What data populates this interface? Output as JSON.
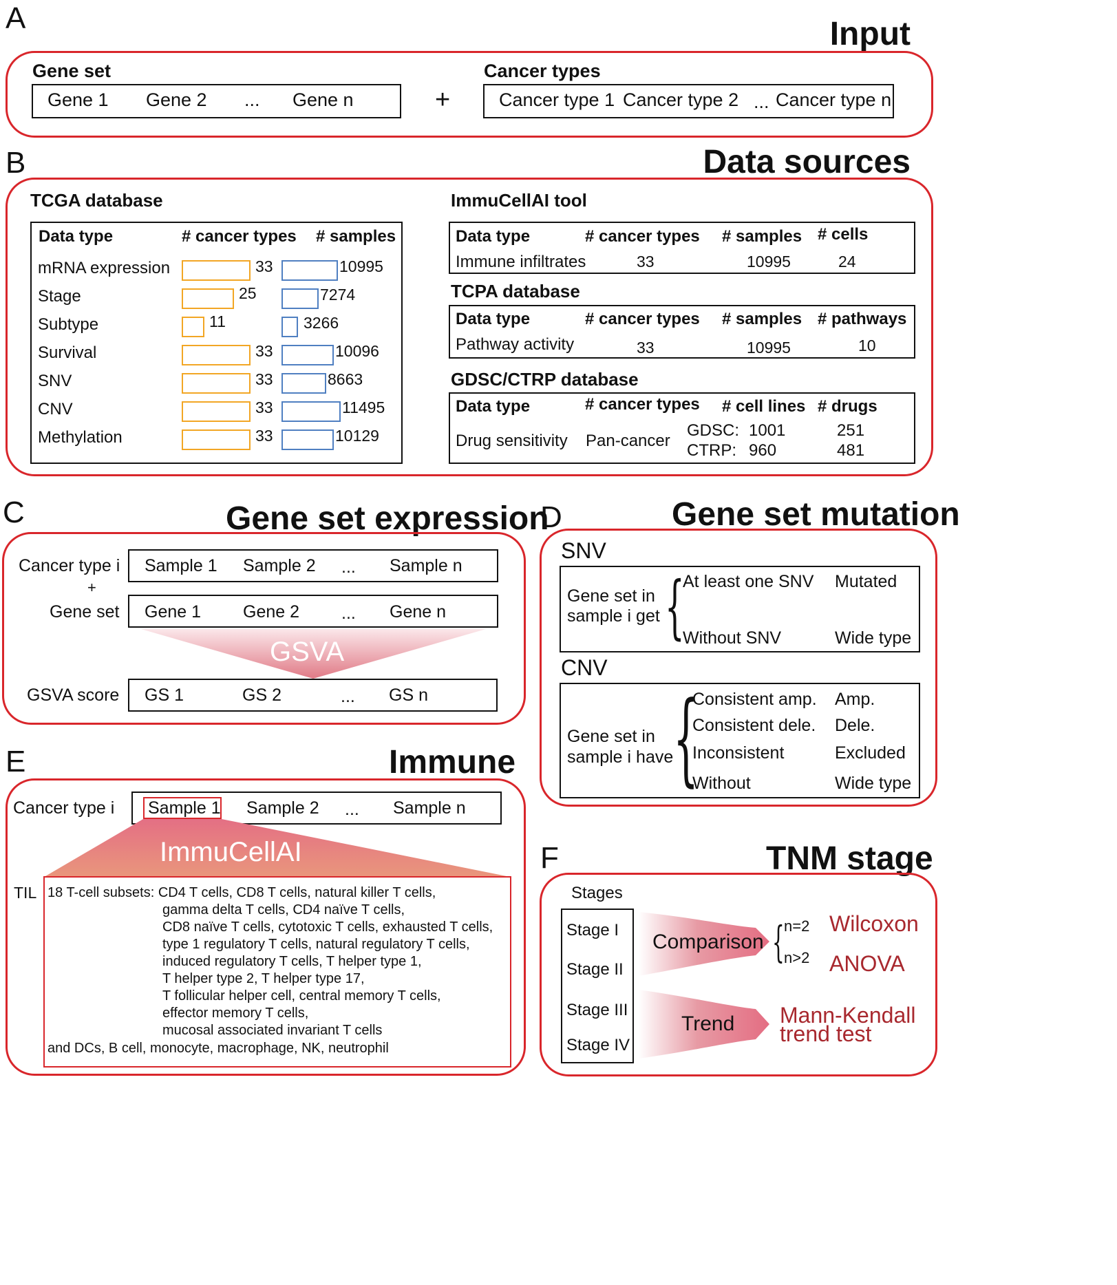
{
  "panelA": {
    "letter": "A",
    "title": "Input",
    "gene_set_label": "Gene set",
    "genes": [
      "Gene 1",
      "Gene 2",
      "...",
      "Gene n"
    ],
    "plus": "+",
    "cancer_types_label": "Cancer types",
    "cancer_types": [
      "Cancer type 1",
      "Cancer type 2",
      "...",
      "Cancer type n"
    ]
  },
  "panelB": {
    "letter": "B",
    "title": "Data sources",
    "tcga": {
      "title": "TCGA database",
      "headers": [
        "Data type",
        "# cancer types",
        "# samples"
      ],
      "rows": [
        {
          "type": "mRNA expression",
          "cancer_types": 33,
          "samples": 10995
        },
        {
          "type": "Stage",
          "cancer_types": 25,
          "samples": 7274
        },
        {
          "type": "Subtype",
          "cancer_types": 11,
          "samples": 3266
        },
        {
          "type": "Survival",
          "cancer_types": 33,
          "samples": 10096
        },
        {
          "type": "SNV",
          "cancer_types": 33,
          "samples": 8663
        },
        {
          "type": "CNV",
          "cancer_types": 33,
          "samples": 11495
        },
        {
          "type": "Methylation",
          "cancer_types": 33,
          "samples": 10129
        }
      ],
      "bar_colors": {
        "cancer_types": "#f2a624",
        "samples": "#4f7fc1"
      }
    },
    "immucellai": {
      "title": "ImmuCellAI tool",
      "headers": [
        "Data type",
        "# cancer types",
        "# samples",
        "# cells"
      ],
      "row": [
        "Immune infiltrates",
        "33",
        "10995",
        "24"
      ]
    },
    "tcpa": {
      "title": "TCPA database",
      "headers": [
        "Data type",
        "# cancer types",
        "# samples",
        "# pathways"
      ],
      "row": [
        "Pathway activity",
        "33",
        "10995",
        "10"
      ]
    },
    "gdsc": {
      "title": "GDSC/CTRP database",
      "headers": [
        "Data type",
        "# cancer types",
        "# cell lines",
        "# drugs"
      ],
      "data_type": "Drug sensitivity",
      "cancer_types": "Pan-cancer",
      "gdsc_label": "GDSC:",
      "gdsc_cells": "1001",
      "gdsc_drugs": "251",
      "ctrp_label": "CTRP:",
      "ctrp_cells": "960",
      "ctrp_drugs": "481"
    }
  },
  "panelC": {
    "letter": "C",
    "title": "Gene set expression",
    "cancer_type_label": "Cancer type i",
    "plus": "+",
    "gene_set_label": "Gene set",
    "samples": [
      "Sample 1",
      "Sample 2",
      "...",
      "Sample n"
    ],
    "genes": [
      "Gene 1",
      "Gene 2",
      "...",
      "Gene n"
    ],
    "method": "GSVA",
    "score_label": "GSVA score",
    "scores": [
      "GS 1",
      "GS 2",
      "...",
      "GS n"
    ]
  },
  "panelD": {
    "letter": "D",
    "title": "Gene set mutation",
    "snv": {
      "label": "SNV",
      "desc_line1": "Gene set in",
      "desc_line2": "sample i get",
      "cases": [
        {
          "condition": "At least one SNV",
          "result": "Mutated"
        },
        {
          "condition": "Without SNV",
          "result": "Wide type"
        }
      ]
    },
    "cnv": {
      "label": "CNV",
      "desc_line1": "Gene set in",
      "desc_line2": "sample i have",
      "cases": [
        {
          "condition": "Consistent amp.",
          "result": "Amp."
        },
        {
          "condition": "Consistent dele.",
          "result": "Dele."
        },
        {
          "condition": "Inconsistent",
          "result": "Excluded"
        },
        {
          "condition": "Without",
          "result": "Wide type"
        }
      ]
    }
  },
  "panelE": {
    "letter": "E",
    "title": "Immune",
    "cancer_type_label": "Cancer type i",
    "samples": [
      "Sample 1",
      "Sample 2",
      "...",
      "Sample n"
    ],
    "method": "ImmuCellAI",
    "til_label": "TIL",
    "lines": [
      "18 T-cell subsets: CD4 T cells, CD8 T cells, natural killer T cells,",
      "gamma delta T cells, CD4 naïve T cells,",
      "CD8 naïve T cells, cytotoxic T cells, exhausted T cells,",
      "type 1 regulatory T cells, natural regulatory T cells,",
      "induced regulatory T cells, T helper type 1,",
      "T helper type 2, T helper type 17,",
      "T follicular helper cell, central memory T cells,",
      "effector memory T cells,",
      "mucosal associated invariant T cells",
      "and DCs, B cell, monocyte, macrophage, NK, neutrophil"
    ]
  },
  "panelF": {
    "letter": "F",
    "title": "TNM stage",
    "stages_label": "Stages",
    "stages": [
      "Stage I",
      "Stage II",
      "Stage III",
      "Stage IV"
    ],
    "comparison": "Comparison",
    "n2": "n=2",
    "ngt2": "n>2",
    "wilcoxon": "Wilcoxon",
    "anova": "ANOVA",
    "trend": "Trend",
    "mk_line1": "Mann-Kendall",
    "mk_line2": "trend test"
  }
}
